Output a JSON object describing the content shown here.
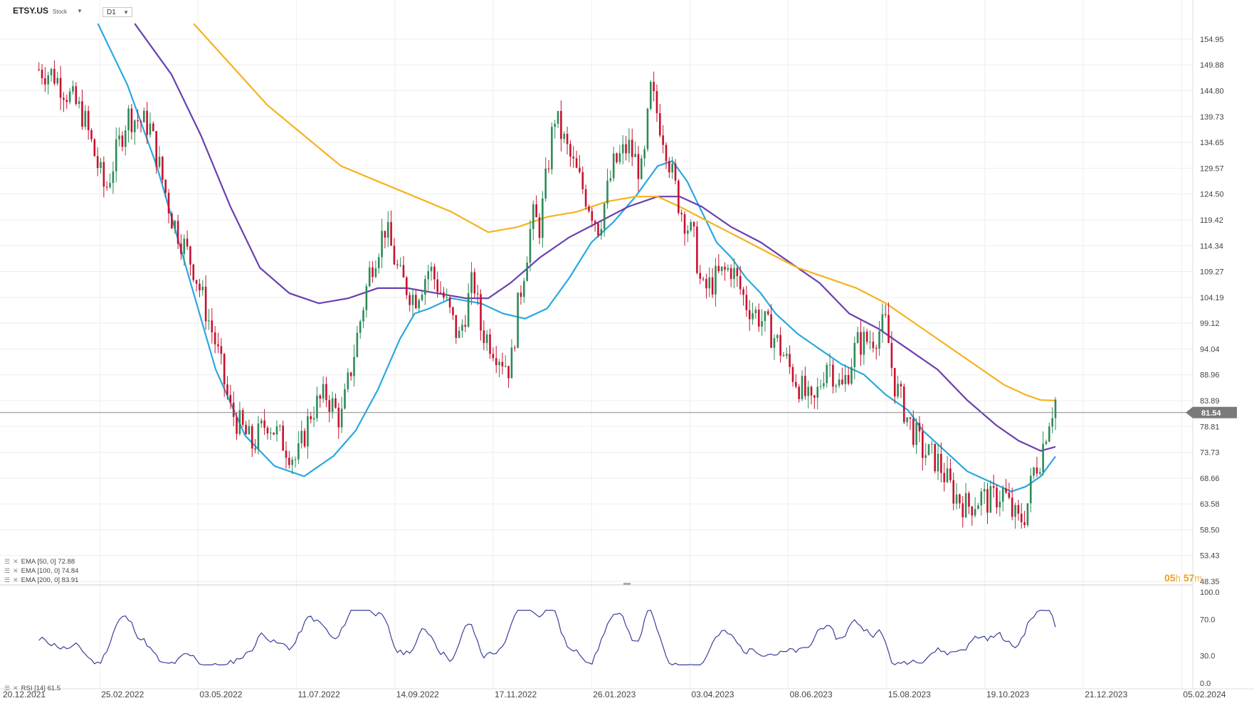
{
  "header": {
    "symbol": "ETSY.US",
    "type": "Stock",
    "timeframe": "D1"
  },
  "countdown": {
    "hours": "05",
    "h_unit": "h",
    "minutes": "57",
    "m_unit": "m"
  },
  "colors": {
    "up": "#2e8b57",
    "down": "#c8102e",
    "ema50": "#29a8e0",
    "ema100": "#6a3fb0",
    "ema200": "#f5b21e",
    "rsi": "#3a3f9a",
    "price_line": "#888888",
    "price_tag": "#7a7a7a"
  },
  "legend": [
    {
      "label": "EMA [50, 0] 72.88"
    },
    {
      "label": "EMA [100, 0] 74.84"
    },
    {
      "label": "EMA [200, 0] 83.91"
    }
  ],
  "rsi_legend": "RSI [14] 61.5",
  "chart_data": {
    "type": "candlestick",
    "x_axis_labels": [
      "20.12.2021",
      "25.02.2022",
      "03.05.2022",
      "11.07.2022",
      "14.09.2022",
      "17.11.2022",
      "26.01.2023",
      "03.04.2023",
      "08.06.2023",
      "15.08.2023",
      "19.10.2023",
      "21.12.2023",
      "05.02.2024"
    ],
    "y_axis_labels": [
      "154.95",
      "149.88",
      "144.80",
      "139.73",
      "134.65",
      "129.57",
      "124.50",
      "119.42",
      "114.34",
      "109.27",
      "104.19",
      "99.12",
      "94.04",
      "88.96",
      "83.89",
      "78.81",
      "73.73",
      "68.66",
      "63.58",
      "58.50",
      "53.43",
      "48.35"
    ],
    "ylim": [
      48.35,
      154.95
    ],
    "last_price": "81.54",
    "ema_series": [
      {
        "name": "EMA 50",
        "last": 72.88,
        "points": [
          [
            0.1,
            158
          ],
          [
            0.14,
            146
          ],
          [
            0.18,
            130
          ],
          [
            0.22,
            110
          ],
          [
            0.26,
            90
          ],
          [
            0.3,
            77
          ],
          [
            0.34,
            71
          ],
          [
            0.38,
            69
          ],
          [
            0.42,
            73
          ],
          [
            0.45,
            78
          ],
          [
            0.48,
            86
          ],
          [
            0.51,
            96
          ],
          [
            0.53,
            101
          ],
          [
            0.55,
            102
          ],
          [
            0.58,
            104
          ],
          [
            0.62,
            103
          ],
          [
            0.65,
            101
          ],
          [
            0.68,
            100
          ],
          [
            0.71,
            102
          ],
          [
            0.74,
            108
          ],
          [
            0.77,
            115
          ],
          [
            0.8,
            119
          ],
          [
            0.83,
            124
          ],
          [
            0.86,
            130
          ],
          [
            0.88,
            131
          ],
          [
            0.9,
            127
          ],
          [
            0.92,
            121
          ],
          [
            0.94,
            115
          ],
          [
            0.96,
            112
          ],
          [
            0.98,
            108
          ],
          [
            1.0,
            105
          ],
          [
            1.02,
            101
          ],
          [
            1.05,
            97
          ],
          [
            1.08,
            94
          ],
          [
            1.11,
            91
          ],
          [
            1.14,
            89
          ],
          [
            1.17,
            85
          ],
          [
            1.2,
            82
          ],
          [
            1.22,
            78
          ],
          [
            1.25,
            74
          ],
          [
            1.28,
            70
          ],
          [
            1.31,
            68
          ],
          [
            1.34,
            66
          ],
          [
            1.36,
            67
          ],
          [
            1.38,
            69
          ],
          [
            1.4,
            72.9
          ]
        ]
      },
      {
        "name": "EMA 100",
        "last": 74.84,
        "points": [
          [
            0.15,
            158
          ],
          [
            0.2,
            148
          ],
          [
            0.24,
            136
          ],
          [
            0.28,
            122
          ],
          [
            0.32,
            110
          ],
          [
            0.36,
            105
          ],
          [
            0.4,
            103
          ],
          [
            0.44,
            104
          ],
          [
            0.48,
            106
          ],
          [
            0.52,
            106
          ],
          [
            0.56,
            105
          ],
          [
            0.6,
            104
          ],
          [
            0.63,
            104
          ],
          [
            0.66,
            107
          ],
          [
            0.7,
            112
          ],
          [
            0.74,
            116
          ],
          [
            0.78,
            119
          ],
          [
            0.82,
            122
          ],
          [
            0.86,
            124
          ],
          [
            0.89,
            124
          ],
          [
            0.92,
            122
          ],
          [
            0.96,
            118
          ],
          [
            1.0,
            115
          ],
          [
            1.04,
            111
          ],
          [
            1.08,
            107
          ],
          [
            1.12,
            101
          ],
          [
            1.16,
            98
          ],
          [
            1.2,
            94
          ],
          [
            1.24,
            90
          ],
          [
            1.28,
            84
          ],
          [
            1.32,
            79
          ],
          [
            1.35,
            76
          ],
          [
            1.38,
            74
          ],
          [
            1.4,
            74.8
          ]
        ]
      },
      {
        "name": "EMA 200",
        "last": 83.91,
        "points": [
          [
            0.23,
            158
          ],
          [
            0.28,
            150
          ],
          [
            0.33,
            142
          ],
          [
            0.38,
            136
          ],
          [
            0.43,
            130
          ],
          [
            0.48,
            127
          ],
          [
            0.53,
            124
          ],
          [
            0.58,
            121
          ],
          [
            0.63,
            117
          ],
          [
            0.67,
            118
          ],
          [
            0.71,
            120
          ],
          [
            0.75,
            121
          ],
          [
            0.79,
            123
          ],
          [
            0.83,
            124
          ],
          [
            0.86,
            124
          ],
          [
            0.89,
            122
          ],
          [
            0.93,
            119
          ],
          [
            0.97,
            116
          ],
          [
            1.01,
            113
          ],
          [
            1.05,
            110
          ],
          [
            1.09,
            108
          ],
          [
            1.13,
            106
          ],
          [
            1.17,
            103
          ],
          [
            1.21,
            99
          ],
          [
            1.25,
            95
          ],
          [
            1.29,
            91
          ],
          [
            1.33,
            87
          ],
          [
            1.36,
            85
          ],
          [
            1.38,
            84
          ],
          [
            1.4,
            83.9
          ]
        ]
      }
    ],
    "rsi": {
      "name": "RSI 14",
      "last": 61.5,
      "ylim": [
        0,
        100
      ],
      "y_axis_labels": [
        "100.0",
        "70.0",
        "30.0",
        "0.0"
      ]
    }
  }
}
